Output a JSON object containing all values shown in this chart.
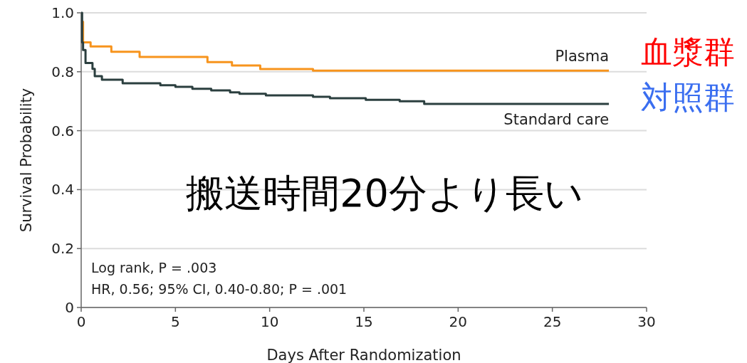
{
  "chart_data": {
    "type": "step",
    "xlabel": "Days After Randomization",
    "ylabel": "Survival Probability",
    "xlim": [
      0,
      30
    ],
    "ylim": [
      0,
      1
    ],
    "xticks": [
      0,
      5,
      10,
      15,
      20,
      25,
      30
    ],
    "yticks": [
      0,
      0.2,
      0.4,
      0.6,
      0.8,
      {
        "value": 1,
        "label": "1.0"
      }
    ],
    "grid": "y",
    "series": [
      {
        "name": "Plasma",
        "color": "#f7941d",
        "x": [
          0,
          0.1,
          0.5,
          1.6,
          3.1,
          6.7,
          8.0,
          9.5,
          12.3,
          28
        ],
        "values": [
          0.97,
          0.9,
          0.886,
          0.868,
          0.85,
          0.833,
          0.821,
          0.809,
          0.804,
          0.804
        ]
      },
      {
        "name": "Standard care",
        "color": "#2b3f3f",
        "x": [
          0,
          0.05,
          0.1,
          0.23,
          0.6,
          0.72,
          1.1,
          2.2,
          4.2,
          5.0,
          5.9,
          6.9,
          7.9,
          8.4,
          9.8,
          12.3,
          13.2,
          15.1,
          16.9,
          18.2,
          28
        ],
        "values": [
          1,
          0.9,
          0.874,
          0.83,
          0.81,
          0.785,
          0.773,
          0.761,
          0.754,
          0.749,
          0.742,
          0.737,
          0.73,
          0.725,
          0.72,
          0.715,
          0.71,
          0.705,
          0.7,
          0.691,
          0.691
        ]
      }
    ],
    "annotations": [
      "搬送時間20分より長い",
      "Log rank, P = .003",
      "HR, 0.56; 95% CI, 0.40-0.80; P = .001",
      "血漿群",
      "対照群"
    ]
  }
}
